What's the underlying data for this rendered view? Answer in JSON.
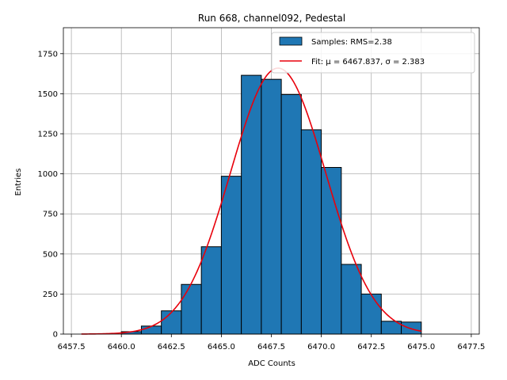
{
  "chart_data": {
    "type": "bar",
    "title": "Run 668, channel092, Pedestal",
    "xlabel": "ADC Counts",
    "ylabel": "Entries",
    "xlim": [
      6457.1,
      6477.9
    ],
    "ylim": [
      0,
      1912
    ],
    "x_ticks": [
      6457.5,
      6460.0,
      6462.5,
      6465.0,
      6467.5,
      6470.0,
      6472.5,
      6475.0,
      6477.5
    ],
    "x_tick_labels": [
      "6457.5",
      "6460.0",
      "6462.5",
      "6465.0",
      "6467.5",
      "6470.0",
      "6472.5",
      "6475.0",
      "6477.5"
    ],
    "y_ticks": [
      0,
      250,
      500,
      750,
      1000,
      1250,
      1500,
      1750
    ],
    "y_tick_labels": [
      "0",
      "250",
      "500",
      "750",
      "1000",
      "1250",
      "1500",
      "1750"
    ],
    "grid": true,
    "legend_position": "top-right",
    "histogram": {
      "name": "Samples: RMS=2.38",
      "color": "#1f77b4",
      "edge_color": "#000000",
      "bin_edges": [
        6460,
        6461,
        6462,
        6463,
        6464,
        6465,
        6466,
        6467,
        6468,
        6469,
        6470,
        6471,
        6472,
        6473,
        6474,
        6475
      ],
      "counts": [
        15,
        50,
        145,
        310,
        545,
        985,
        1615,
        1590,
        1495,
        1275,
        1040,
        435,
        250,
        80,
        75
      ]
    },
    "fit": {
      "name": "Fit: μ = 6467.837, σ = 2.383",
      "color": "#e8000b",
      "mu": 6467.837,
      "sigma": 2.383,
      "amplitude": 1660,
      "x_range": [
        6458,
        6475
      ]
    }
  }
}
